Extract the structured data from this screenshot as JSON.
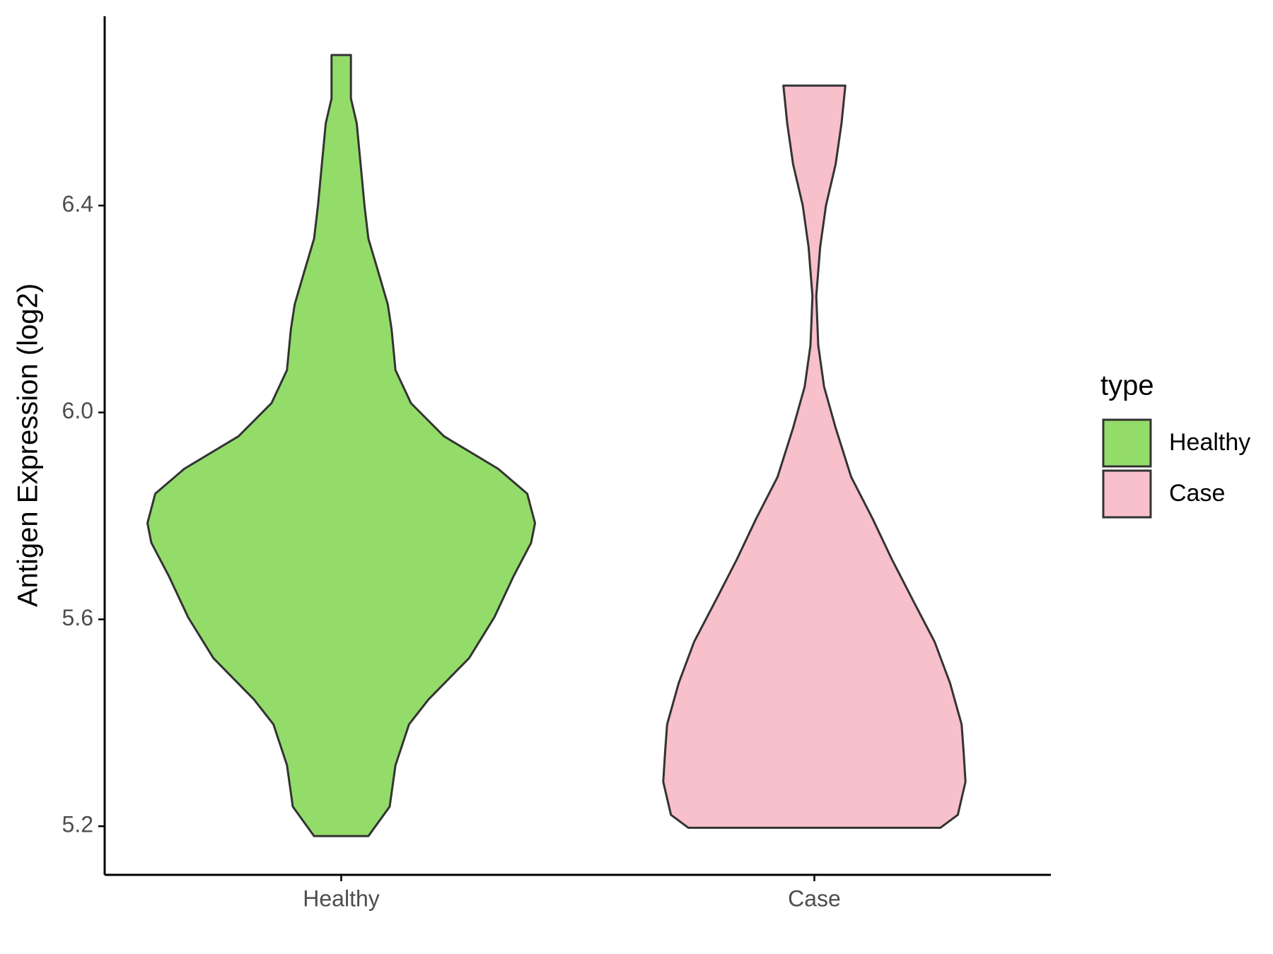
{
  "chart_data": {
    "type": "violin",
    "y_label": "Antigen Expression (log2)",
    "legend_title": "type",
    "legend": "right",
    "categories": [
      "Healthy",
      "Case"
    ],
    "ylim": [
      5.106,
      6.766
    ],
    "yticks": [
      {
        "value": 5.2,
        "label": "5.2"
      },
      {
        "value": 5.6,
        "label": "5.6"
      },
      {
        "value": 6.0,
        "label": "6.0"
      },
      {
        "value": 6.4,
        "label": "6.4"
      }
    ],
    "series": [
      {
        "name": "Healthy",
        "color": "#93dc6a",
        "y": [
          5.181,
          5.238,
          5.318,
          5.397,
          5.445,
          5.525,
          5.604,
          5.684,
          5.748,
          5.786,
          5.843,
          5.891,
          5.954,
          6.018,
          6.082,
          6.161,
          6.209,
          6.273,
          6.336,
          6.4,
          6.48,
          6.559,
          6.607,
          6.655,
          6.691
        ],
        "density": [
          0.14,
          0.25,
          0.28,
          0.35,
          0.45,
          0.66,
          0.79,
          0.89,
          0.98,
          1,
          0.96,
          0.81,
          0.53,
          0.36,
          0.28,
          0.26,
          0.24,
          0.19,
          0.14,
          0.12,
          0.1,
          0.08,
          0.05,
          0.05,
          0.05
        ]
      },
      {
        "name": "Case",
        "color": "#f7c0cb",
        "y": [
          5.197,
          5.222,
          5.286,
          5.345,
          5.397,
          5.477,
          5.557,
          5.636,
          5.716,
          5.795,
          5.875,
          5.97,
          6.05,
          6.13,
          6.225,
          6.32,
          6.4,
          6.48,
          6.559,
          6.632
        ],
        "density": [
          0.65,
          0.74,
          0.78,
          0.77,
          0.76,
          0.7,
          0.62,
          0.51,
          0.4,
          0.3,
          0.19,
          0.11,
          0.05,
          0.02,
          0.01,
          0.03,
          0.06,
          0.11,
          0.14,
          0.16
        ]
      }
    ]
  }
}
